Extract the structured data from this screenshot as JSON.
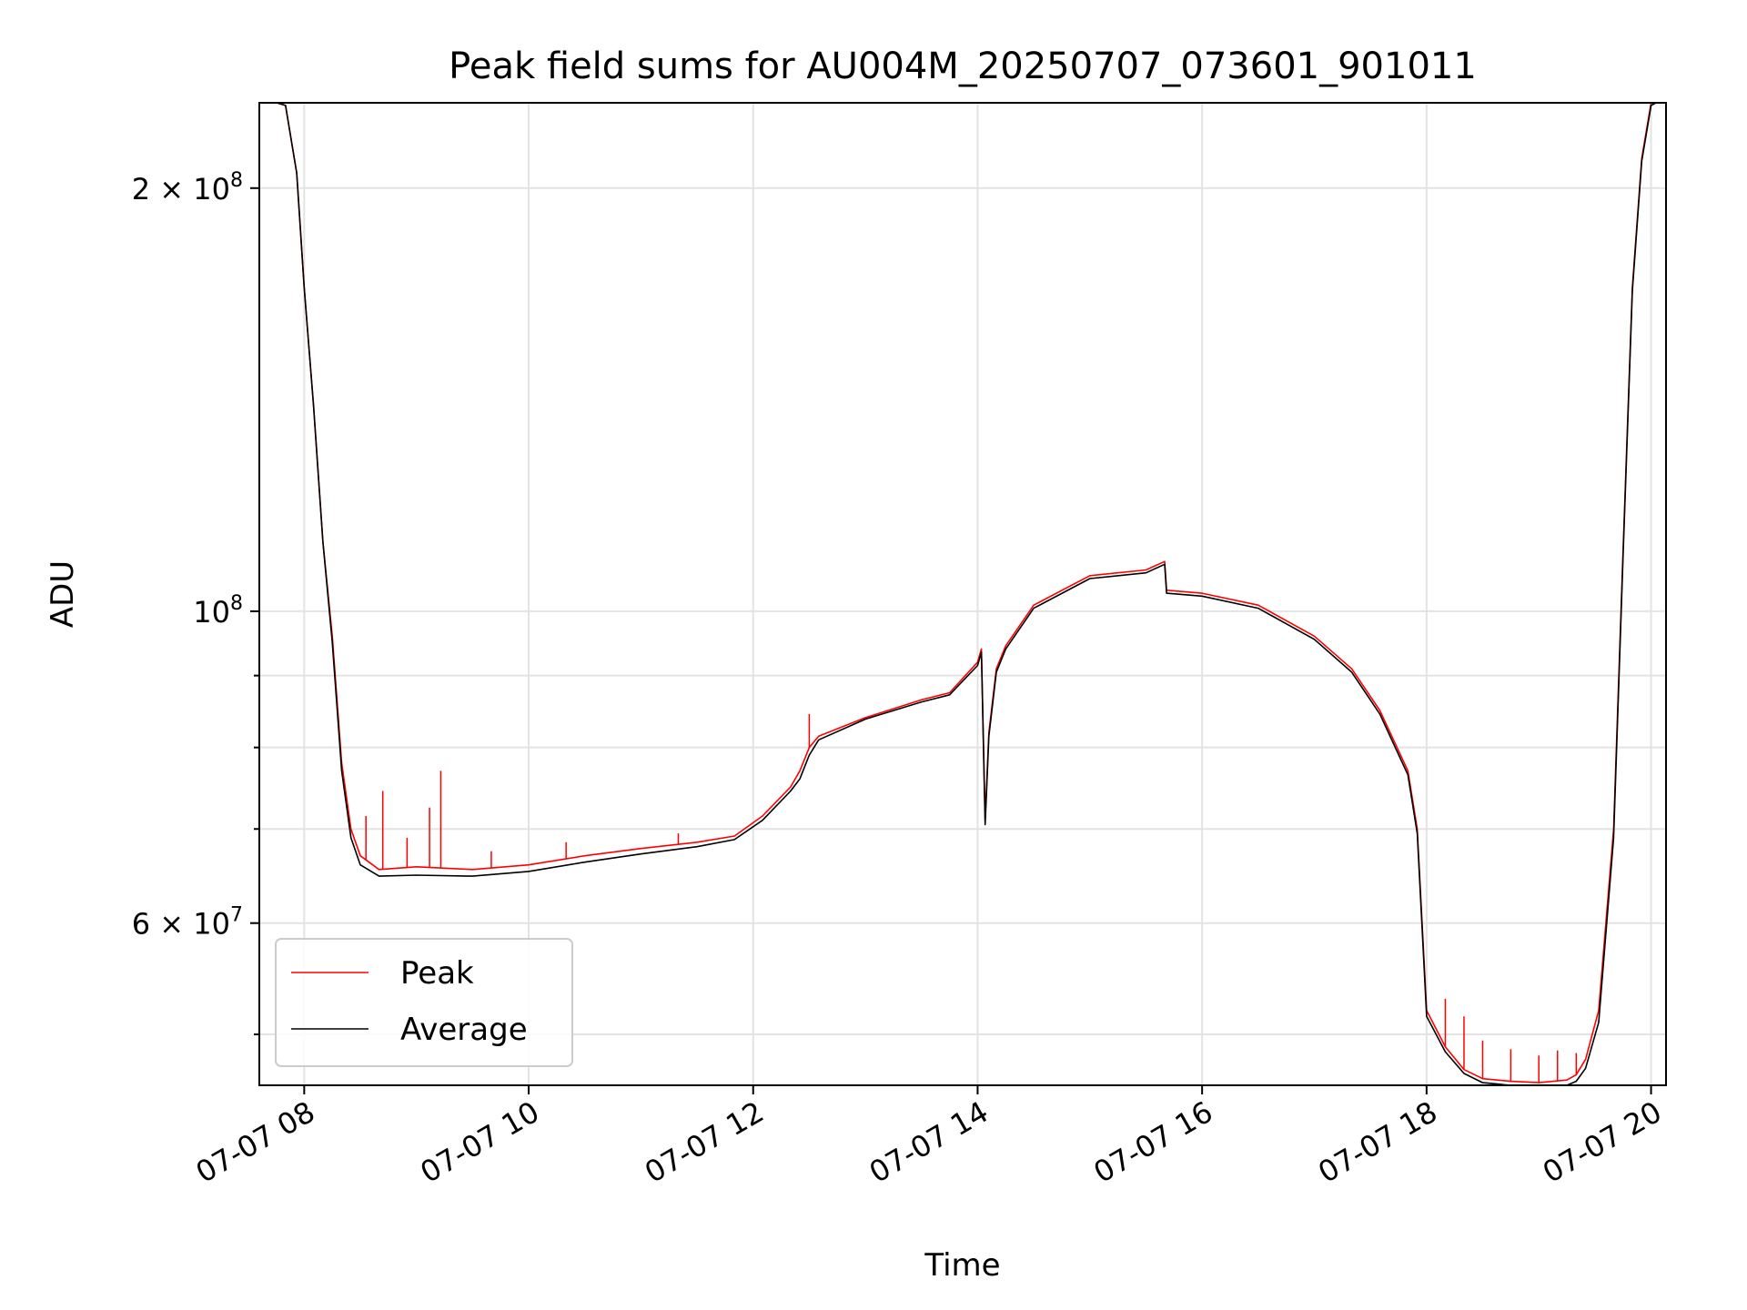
{
  "chart_data": {
    "type": "line",
    "title": "Peak field sums for AU004M_20250707_073601_901011",
    "xlabel": "Time",
    "ylabel": "ADU",
    "x_scale": "time",
    "y_scale": "log",
    "xlim": [
      "2025-07-07 07:36",
      "2025-07-07 20:08"
    ],
    "ylim": [
      46000000,
      230000000
    ],
    "grid": true,
    "legend_position": "lower-left",
    "x_ticks": [
      {
        "value": "2025-07-07 08:00",
        "label": "07-07 08"
      },
      {
        "value": "2025-07-07 10:00",
        "label": "07-07 10"
      },
      {
        "value": "2025-07-07 12:00",
        "label": "07-07 12"
      },
      {
        "value": "2025-07-07 14:00",
        "label": "07-07 14"
      },
      {
        "value": "2025-07-07 16:00",
        "label": "07-07 16"
      },
      {
        "value": "2025-07-07 18:00",
        "label": "07-07 18"
      },
      {
        "value": "2025-07-07 20:00",
        "label": "07-07 20"
      }
    ],
    "y_ticks": [
      {
        "value": 60000000,
        "base": "6 × 10",
        "exp": "7"
      },
      {
        "value": 100000000,
        "base": "10",
        "exp": "8"
      },
      {
        "value": 200000000,
        "base": "2 × 10",
        "exp": "8"
      }
    ],
    "y_minor_ticks": [
      50000000,
      70000000,
      80000000,
      90000000
    ],
    "series": [
      {
        "name": "Peak",
        "color": "#ff0000",
        "x": [
          "2025-07-07 07:36",
          "2025-07-07 07:50",
          "2025-07-07 07:56",
          "2025-07-07 08:00",
          "2025-07-07 08:05",
          "2025-07-07 08:10",
          "2025-07-07 08:15",
          "2025-07-07 08:20",
          "2025-07-07 08:25",
          "2025-07-07 08:30",
          "2025-07-07 08:40",
          "2025-07-07 09:00",
          "2025-07-07 09:30",
          "2025-07-07 10:00",
          "2025-07-07 10:30",
          "2025-07-07 11:00",
          "2025-07-07 11:30",
          "2025-07-07 11:50",
          "2025-07-07 12:05",
          "2025-07-07 12:20",
          "2025-07-07 12:25",
          "2025-07-07 12:30",
          "2025-07-07 12:35",
          "2025-07-07 13:00",
          "2025-07-07 13:30",
          "2025-07-07 13:45",
          "2025-07-07 14:00",
          "2025-07-07 14:02",
          "2025-07-07 14:04",
          "2025-07-07 14:06",
          "2025-07-07 14:10",
          "2025-07-07 14:15",
          "2025-07-07 14:30",
          "2025-07-07 15:00",
          "2025-07-07 15:30",
          "2025-07-07 15:40",
          "2025-07-07 15:41",
          "2025-07-07 16:00",
          "2025-07-07 16:30",
          "2025-07-07 17:00",
          "2025-07-07 17:20",
          "2025-07-07 17:35",
          "2025-07-07 17:50",
          "2025-07-07 17:55",
          "2025-07-07 18:00",
          "2025-07-07 18:10",
          "2025-07-07 18:20",
          "2025-07-07 18:30",
          "2025-07-07 18:45",
          "2025-07-07 19:00",
          "2025-07-07 19:15",
          "2025-07-07 19:20",
          "2025-07-07 19:25",
          "2025-07-07 19:32",
          "2025-07-07 19:40",
          "2025-07-07 19:45",
          "2025-07-07 19:50",
          "2025-07-07 19:55",
          "2025-07-07 20:00",
          "2025-07-07 20:08"
        ],
        "y": [
          232000000,
          229000000,
          205000000,
          170000000,
          140000000,
          112000000,
          96000000,
          78000000,
          70000000,
          67000000,
          65500000,
          65800000,
          65500000,
          66000000,
          67000000,
          67800000,
          68500000,
          69200000,
          71500000,
          75000000,
          77000000,
          80000000,
          81500000,
          84000000,
          86500000,
          87500000,
          92000000,
          94000000,
          71000000,
          82000000,
          91000000,
          94500000,
          101000000,
          106000000,
          107000000,
          108500000,
          103500000,
          103000000,
          101000000,
          96000000,
          91000000,
          85000000,
          77000000,
          70000000,
          52000000,
          49000000,
          47200000,
          46500000,
          46300000,
          46200000,
          46400000,
          46800000,
          48000000,
          52000000,
          70000000,
          110000000,
          170000000,
          210000000,
          230000000,
          232000000
        ]
      },
      {
        "name": "Average",
        "color": "#000000",
        "x": [
          "2025-07-07 07:36",
          "2025-07-07 07:50",
          "2025-07-07 07:56",
          "2025-07-07 08:00",
          "2025-07-07 08:05",
          "2025-07-07 08:10",
          "2025-07-07 08:15",
          "2025-07-07 08:20",
          "2025-07-07 08:25",
          "2025-07-07 08:30",
          "2025-07-07 08:40",
          "2025-07-07 09:00",
          "2025-07-07 09:30",
          "2025-07-07 10:00",
          "2025-07-07 10:30",
          "2025-07-07 11:00",
          "2025-07-07 11:30",
          "2025-07-07 11:50",
          "2025-07-07 12:05",
          "2025-07-07 12:20",
          "2025-07-07 12:25",
          "2025-07-07 12:30",
          "2025-07-07 12:35",
          "2025-07-07 13:00",
          "2025-07-07 13:30",
          "2025-07-07 13:45",
          "2025-07-07 14:00",
          "2025-07-07 14:02",
          "2025-07-07 14:04",
          "2025-07-07 14:06",
          "2025-07-07 14:10",
          "2025-07-07 14:15",
          "2025-07-07 14:30",
          "2025-07-07 15:00",
          "2025-07-07 15:30",
          "2025-07-07 15:40",
          "2025-07-07 15:41",
          "2025-07-07 16:00",
          "2025-07-07 16:30",
          "2025-07-07 17:00",
          "2025-07-07 17:20",
          "2025-07-07 17:35",
          "2025-07-07 17:50",
          "2025-07-07 17:55",
          "2025-07-07 18:00",
          "2025-07-07 18:10",
          "2025-07-07 18:20",
          "2025-07-07 18:30",
          "2025-07-07 18:45",
          "2025-07-07 19:00",
          "2025-07-07 19:15",
          "2025-07-07 19:20",
          "2025-07-07 19:25",
          "2025-07-07 19:32",
          "2025-07-07 19:40",
          "2025-07-07 19:45",
          "2025-07-07 19:50",
          "2025-07-07 19:55",
          "2025-07-07 20:00",
          "2025-07-07 20:08"
        ],
        "y": [
          232000000,
          229000000,
          205000000,
          170000000,
          140000000,
          112000000,
          95000000,
          77000000,
          69000000,
          66000000,
          64800000,
          64900000,
          64800000,
          65300000,
          66300000,
          67200000,
          68000000,
          68800000,
          71000000,
          74500000,
          76000000,
          79000000,
          81000000,
          83800000,
          86200000,
          87200000,
          91500000,
          93500000,
          70500000,
          81500000,
          90500000,
          94000000,
          100500000,
          105500000,
          106500000,
          108000000,
          103000000,
          102500000,
          100500000,
          95500000,
          90500000,
          84500000,
          76500000,
          69500000,
          51500000,
          48600000,
          46900000,
          46200000,
          46000000,
          45900000,
          46000000,
          46300000,
          47300000,
          51000000,
          69000000,
          109000000,
          169000000,
          209000000,
          229000000,
          232000000
        ]
      }
    ],
    "peak_spikes": [
      {
        "x": "2025-07-07 08:33",
        "y": 71500000
      },
      {
        "x": "2025-07-07 08:42",
        "y": 74500000
      },
      {
        "x": "2025-07-07 08:55",
        "y": 69000000
      },
      {
        "x": "2025-07-07 09:07",
        "y": 72500000
      },
      {
        "x": "2025-07-07 09:13",
        "y": 77000000
      },
      {
        "x": "2025-07-07 09:40",
        "y": 67500000
      },
      {
        "x": "2025-07-07 10:20",
        "y": 68500000
      },
      {
        "x": "2025-07-07 11:20",
        "y": 69500000
      },
      {
        "x": "2025-07-07 12:30",
        "y": 84500000
      },
      {
        "x": "2025-07-07 18:10",
        "y": 53000000
      },
      {
        "x": "2025-07-07 18:20",
        "y": 51500000
      },
      {
        "x": "2025-07-07 18:30",
        "y": 49500000
      },
      {
        "x": "2025-07-07 18:45",
        "y": 48800000
      },
      {
        "x": "2025-07-07 19:00",
        "y": 48300000
      },
      {
        "x": "2025-07-07 19:10",
        "y": 48700000
      },
      {
        "x": "2025-07-07 19:20",
        "y": 48500000
      }
    ]
  }
}
